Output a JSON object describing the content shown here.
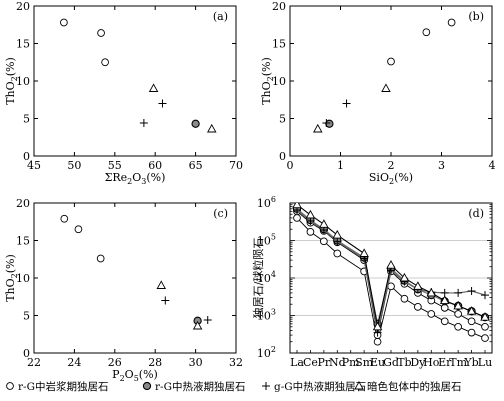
{
  "legend": [
    {
      "symbol": "open-circle",
      "label": "r-G中岩浆期独居石"
    },
    {
      "symbol": "gray-circle",
      "label": "r-G中热液期独居石"
    },
    {
      "symbol": "plus",
      "label": "g-G中热液期独居石"
    },
    {
      "symbol": "triangle",
      "label": "暗色包体中的独居石"
    }
  ],
  "chart_data": [
    {
      "type": "scatter",
      "panel": "(a)",
      "xlabel": "ΣRe2O3(%)",
      "ylabel": "ThO2(%)",
      "xlim": [
        45,
        70
      ],
      "ylim": [
        0,
        20
      ],
      "xticks": [
        45,
        50,
        55,
        60,
        65,
        70
      ],
      "yticks": [
        0,
        5,
        10,
        15,
        20
      ],
      "series": [
        {
          "name": "r-G中岩浆期独居石",
          "points": [
            [
              48.7,
              17.8
            ],
            [
              53.3,
              16.4
            ],
            [
              53.8,
              12.5
            ]
          ]
        },
        {
          "name": "r-G中热液期独居石",
          "points": [
            [
              65.0,
              4.3
            ]
          ]
        },
        {
          "name": "g-G中热液期独居石",
          "points": [
            [
              58.6,
              4.4
            ],
            [
              60.9,
              7.0
            ]
          ]
        },
        {
          "name": "暗色包体中的独居石",
          "points": [
            [
              59.8,
              9.0
            ],
            [
              67.0,
              3.6
            ]
          ]
        }
      ]
    },
    {
      "type": "scatter",
      "panel": "(b)",
      "xlabel": "SiO2(%)",
      "ylabel": "ThO2(%)",
      "xlim": [
        0,
        4
      ],
      "ylim": [
        0,
        20
      ],
      "xticks": [
        0,
        1,
        2,
        3,
        4
      ],
      "yticks": [
        0,
        5,
        10,
        15,
        20
      ],
      "series": [
        {
          "name": "r-G中岩浆期独居石",
          "points": [
            [
              2.0,
              12.6
            ],
            [
              2.7,
              16.5
            ],
            [
              3.2,
              17.8
            ]
          ]
        },
        {
          "name": "r-G中热液期独居石",
          "points": [
            [
              0.78,
              4.3
            ]
          ]
        },
        {
          "name": "g-G中热液期独居石",
          "points": [
            [
              0.72,
              4.4
            ],
            [
              1.12,
              7.0
            ]
          ]
        },
        {
          "name": "暗色包体中的独居石",
          "points": [
            [
              0.55,
              3.6
            ],
            [
              1.9,
              9.0
            ]
          ]
        }
      ]
    },
    {
      "type": "scatter",
      "panel": "(c)",
      "xlabel": "P2O5(%)",
      "ylabel": "ThO2(%)",
      "xlim": [
        22,
        32
      ],
      "ylim": [
        0,
        20
      ],
      "xticks": [
        22,
        24,
        26,
        28,
        30,
        32
      ],
      "yticks": [
        0,
        5,
        10,
        15,
        20
      ],
      "series": [
        {
          "name": "r-G中岩浆期独居石",
          "points": [
            [
              23.5,
              17.9
            ],
            [
              24.2,
              16.5
            ],
            [
              25.3,
              12.6
            ]
          ]
        },
        {
          "name": "r-G中热液期独居石",
          "points": [
            [
              30.1,
              4.3
            ]
          ]
        },
        {
          "name": "g-G中热液期独居石",
          "points": [
            [
              28.5,
              7.0
            ],
            [
              30.6,
              4.4
            ]
          ]
        },
        {
          "name": "暗色包体中的独居石",
          "points": [
            [
              28.3,
              9.0
            ],
            [
              30.1,
              3.6
            ]
          ]
        }
      ]
    },
    {
      "type": "line",
      "panel": "(d)",
      "ylabel": "独居石/球粒陨石",
      "yscale": "log",
      "ylim": [
        100,
        1000000
      ],
      "ytick_labels": [
        "10^2",
        "10^3",
        "10^4",
        "10^5",
        "10^6"
      ],
      "categories": [
        "La",
        "Ce",
        "Pr",
        "Nd",
        "Pm",
        "Sm",
        "Eu",
        "Gd",
        "Tb",
        "Dy",
        "Ho",
        "Er",
        "Tm",
        "Yb",
        "Lu"
      ],
      "series": [
        {
          "name": "r-G中岩浆期独居石",
          "values": [
            400000,
            170000,
            95000,
            45000,
            null,
            15000,
            200,
            6000,
            2800,
            1700,
            1100,
            700,
            500,
            350,
            250
          ]
        },
        {
          "name": "r-G中岩浆期独居石",
          "values": [
            600000,
            300000,
            180000,
            90000,
            null,
            30000,
            300,
            15000,
            7000,
            4000,
            2500,
            1600,
            1100,
            700,
            500
          ]
        },
        {
          "name": "r-G中热液期独居石",
          "values": [
            700000,
            350000,
            200000,
            100000,
            null,
            35000,
            600,
            18000,
            8500,
            5000,
            3500,
            2400,
            1800,
            1300,
            900
          ]
        },
        {
          "name": "g-G中热液期独居石",
          "values": [
            650000,
            330000,
            190000,
            95000,
            null,
            33000,
            350,
            16000,
            8000,
            5000,
            4200,
            4000,
            4000,
            4500,
            3500
          ]
        },
        {
          "name": "暗色包体中的独居石",
          "values": [
            900000,
            480000,
            270000,
            140000,
            null,
            45000,
            500,
            22000,
            10000,
            6000,
            4000,
            2500,
            1800,
            1300,
            900
          ]
        }
      ]
    }
  ]
}
